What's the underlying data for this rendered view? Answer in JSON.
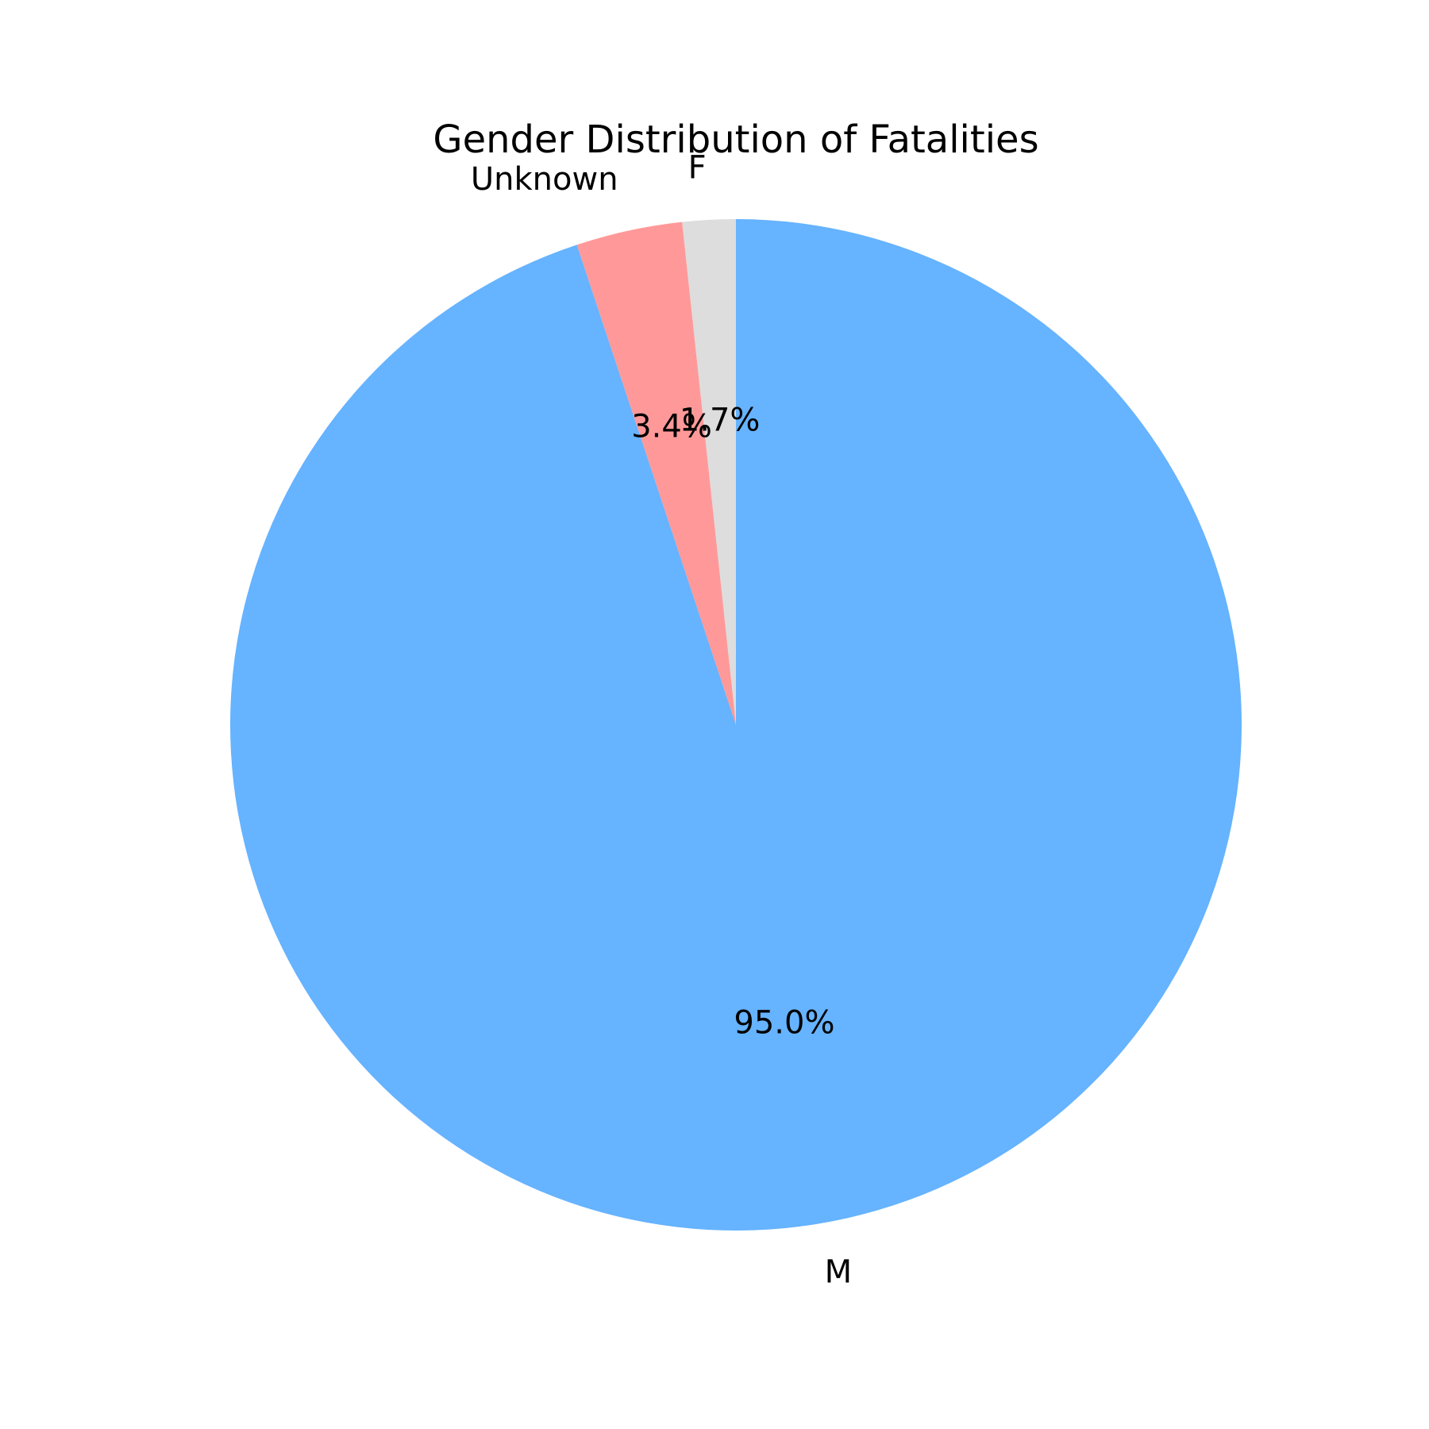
{
  "chart_data": {
    "type": "pie",
    "title": "Gender Distribution of Fatalities",
    "start_angle_deg": 90,
    "direction": "counterclockwise",
    "slices": [
      {
        "label": "F",
        "value": 1.7,
        "pct_label": "1.7%",
        "color": "#dddddd"
      },
      {
        "label": "Unknown",
        "value": 3.4,
        "pct_label": "3.4%",
        "color": "#ff9999"
      },
      {
        "label": "M",
        "value": 95.0,
        "pct_label": "95.0%",
        "color": "#66b3ff"
      }
    ]
  }
}
